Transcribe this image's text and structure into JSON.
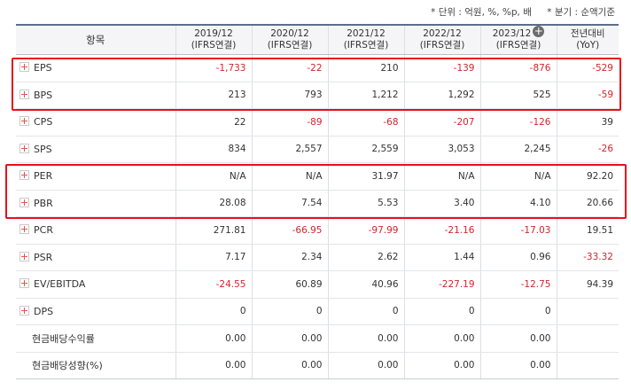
{
  "notes": {
    "unit": "* 단위 : 억원, %, %p, 배",
    "period": "* 분기 : 순액기준"
  },
  "header": {
    "item": "항목",
    "cols": [
      {
        "year": "2019/12",
        "basis": "(IFRS연결)"
      },
      {
        "year": "2020/12",
        "basis": "(IFRS연결)"
      },
      {
        "year": "2021/12",
        "basis": "(IFRS연결)"
      },
      {
        "year": "2022/12",
        "basis": "(IFRS연결)"
      },
      {
        "year": "2023/12",
        "basis": "(IFRS연결)",
        "add_icon": "plus-circle-icon"
      },
      {
        "year": "전년대비",
        "basis": "(YoY)"
      }
    ]
  },
  "rows": [
    {
      "name": "EPS",
      "icon": "expand-plus-icon",
      "values": [
        "-1,733",
        "-22",
        "210",
        "-139",
        "-876",
        "-529"
      ]
    },
    {
      "name": "BPS",
      "icon": "expand-plus-icon",
      "values": [
        "213",
        "793",
        "1,212",
        "1,292",
        "525",
        "-59"
      ]
    },
    {
      "name": "CPS",
      "icon": "expand-plus-icon",
      "values": [
        "22",
        "-89",
        "-68",
        "-207",
        "-126",
        "39"
      ]
    },
    {
      "name": "SPS",
      "icon": "expand-plus-icon",
      "values": [
        "834",
        "2,557",
        "2,559",
        "3,053",
        "2,245",
        "-26"
      ]
    },
    {
      "name": "PER",
      "icon": "expand-plus-icon",
      "values": [
        "N/A",
        "N/A",
        "31.97",
        "N/A",
        "N/A",
        "92.20"
      ]
    },
    {
      "name": "PBR",
      "icon": "expand-plus-icon",
      "values": [
        "28.08",
        "7.54",
        "5.53",
        "3.40",
        "4.10",
        "20.66"
      ]
    },
    {
      "name": "PCR",
      "icon": "expand-plus-icon",
      "values": [
        "271.81",
        "-66.95",
        "-97.99",
        "-21.16",
        "-17.03",
        "19.51"
      ]
    },
    {
      "name": "PSR",
      "icon": "expand-plus-icon",
      "values": [
        "7.17",
        "2.34",
        "2.62",
        "1.44",
        "0.96",
        "-33.32"
      ]
    },
    {
      "name": "EV/EBITDA",
      "icon": "expand-plus-icon",
      "values": [
        "-24.55",
        "60.89",
        "40.96",
        "-227.19",
        "-12.75",
        "94.39"
      ]
    },
    {
      "name": "DPS",
      "icon": "expand-plus-icon",
      "values": [
        "0",
        "0",
        "0",
        "0",
        "0",
        ""
      ]
    },
    {
      "name": "현금배당수익률",
      "values": [
        "0.00",
        "0.00",
        "0.00",
        "0.00",
        "0.00",
        ""
      ]
    },
    {
      "name": "현금배당성향(%)",
      "values": [
        "0.00",
        "0.00",
        "0.00",
        "0.00",
        "0.00",
        ""
      ]
    }
  ],
  "highlight_color": "#e8101a",
  "negative_color": "#d0262c"
}
